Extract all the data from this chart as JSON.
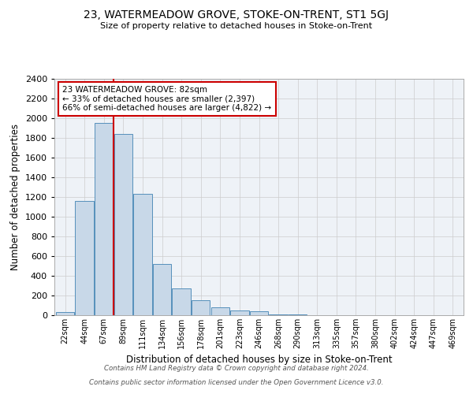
{
  "title": "23, WATERMEADOW GROVE, STOKE-ON-TRENT, ST1 5GJ",
  "subtitle": "Size of property relative to detached houses in Stoke-on-Trent",
  "xlabel": "Distribution of detached houses by size in Stoke-on-Trent",
  "ylabel": "Number of detached properties",
  "bin_labels": [
    "22sqm",
    "44sqm",
    "67sqm",
    "89sqm",
    "111sqm",
    "134sqm",
    "156sqm",
    "178sqm",
    "201sqm",
    "223sqm",
    "246sqm",
    "268sqm",
    "290sqm",
    "313sqm",
    "335sqm",
    "357sqm",
    "380sqm",
    "402sqm",
    "424sqm",
    "447sqm",
    "469sqm"
  ],
  "bin_values": [
    30,
    1160,
    1950,
    1840,
    1230,
    520,
    275,
    155,
    80,
    50,
    40,
    5,
    10,
    2,
    1,
    0,
    0,
    0,
    0,
    0,
    0
  ],
  "bar_color": "#c8d8e8",
  "bar_edge_color": "#5590bb",
  "red_line_bin_index": 2.5,
  "annotation_title": "23 WATERMEADOW GROVE: 82sqm",
  "annotation_line1": "← 33% of detached houses are smaller (2,397)",
  "annotation_line2": "66% of semi-detached houses are larger (4,822) →",
  "annotation_box_color": "#ffffff",
  "annotation_box_edge": "#cc0000",
  "ylim": [
    0,
    2400
  ],
  "yticks": [
    0,
    200,
    400,
    600,
    800,
    1000,
    1200,
    1400,
    1600,
    1800,
    2000,
    2200,
    2400
  ],
  "footer_line1": "Contains HM Land Registry data © Crown copyright and database right 2024.",
  "footer_line2": "Contains public sector information licensed under the Open Government Licence v3.0.",
  "grid_color": "#cccccc",
  "background_color": "#eef2f7"
}
